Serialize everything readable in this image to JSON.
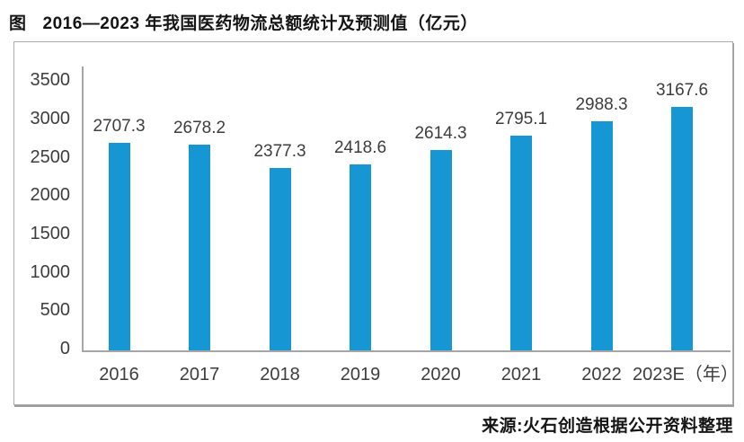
{
  "title": {
    "prefix": "图",
    "text": "2016—2023 年我国医药物流总额统计及预测值（亿元）"
  },
  "source": "来源:火石创造根据公开资料整理",
  "colors": {
    "bar": "#1697d4",
    "axis_line": "#a6a6a6",
    "box_border": "#ababab",
    "label_text": "#3d3d3d",
    "title_text": "#151515"
  },
  "chart_data": {
    "type": "bar",
    "title": "2016—2023 年我国医药物流总额统计及预测值（亿元）",
    "categories": [
      "2016",
      "2017",
      "2018",
      "2019",
      "2020",
      "2021",
      "2022",
      "2023E（年）"
    ],
    "values": [
      2707.3,
      2678.2,
      2377.3,
      2418.6,
      2614.3,
      2795.1,
      2988.3,
      3167.6
    ],
    "value_labels": [
      "2707.3",
      "2678.2",
      "2377.3",
      "2418.6",
      "2614.3",
      "2795.1",
      "2988.3",
      "3167.6"
    ],
    "xlabel": "",
    "ylabel": "",
    "ylim": [
      0,
      3500
    ],
    "yticks": [
      0,
      500,
      1000,
      1500,
      2000,
      2500,
      3000,
      3500
    ],
    "grid": false,
    "legend": "none",
    "data_labels": "above-bars",
    "source": "来源:火石创造根据公开资料整理"
  }
}
